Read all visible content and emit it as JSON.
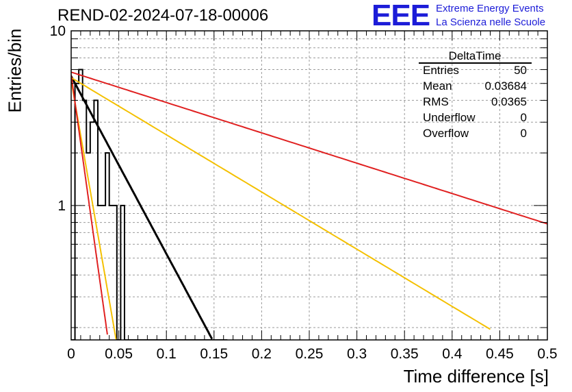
{
  "title": "REND-02-2024-07-18-00006",
  "logo": {
    "mark": "EEE",
    "line1": "Extreme Energy Events",
    "line2": "La Scienza nelle Scuole",
    "color": "#1c1cd8"
  },
  "stats": {
    "name": "DeltaTime",
    "rows": [
      {
        "key": "Entries",
        "value": "50"
      },
      {
        "key": "Mean",
        "value": "0.03684"
      },
      {
        "key": "RMS",
        "value": "0.0365"
      },
      {
        "key": "Underflow",
        "value": "0"
      },
      {
        "key": "Overflow",
        "value": "0"
      }
    ]
  },
  "chart_data": {
    "type": "line",
    "xlabel": "Time difference [s]",
    "ylabel": "Entries/bin",
    "xlim": [
      0,
      0.5
    ],
    "ylim": [
      0.17,
      10
    ],
    "yscale": "log",
    "grid": true,
    "x_ticks": [
      "0",
      "0.05",
      "0.1",
      "0.15",
      "0.2",
      "0.25",
      "0.3",
      "0.35",
      "0.4",
      "0.45",
      "0.5"
    ],
    "y_ticks": [
      "1",
      "10"
    ],
    "histogram": {
      "bin_width": 0.004,
      "x_start": 0,
      "counts": [
        0,
        5,
        6,
        4,
        2,
        3,
        4,
        1,
        1,
        2,
        1,
        1,
        0,
        1,
        0,
        0,
        0,
        0,
        0,
        0,
        0,
        0,
        0,
        0,
        0,
        0,
        0,
        0,
        0,
        0,
        0,
        0,
        0,
        0,
        0,
        0,
        0,
        0,
        0,
        0,
        0
      ],
      "color": "#000000"
    },
    "histogram_note": "",
    "curves": [
      {
        "color": "#000000",
        "width": 3,
        "a": 5.5,
        "tau": 0.0427,
        "x_end": 0.153
      },
      {
        "color": "#e02020",
        "width": 2,
        "a": 5.8,
        "tau": 0.25,
        "x_end": 0.5
      },
      {
        "color": "#f4c000",
        "width": 2,
        "a": 5.4,
        "tau": 0.1326,
        "x_end": 0.44
      },
      {
        "color": "#f4c000",
        "width": 2,
        "a": 5.2,
        "tau": 0.0138,
        "x_end": 0.0475
      },
      {
        "color": "#e02020",
        "width": 2,
        "a": 5.6,
        "tau": 0.0111,
        "x_end": 0.038
      }
    ]
  }
}
